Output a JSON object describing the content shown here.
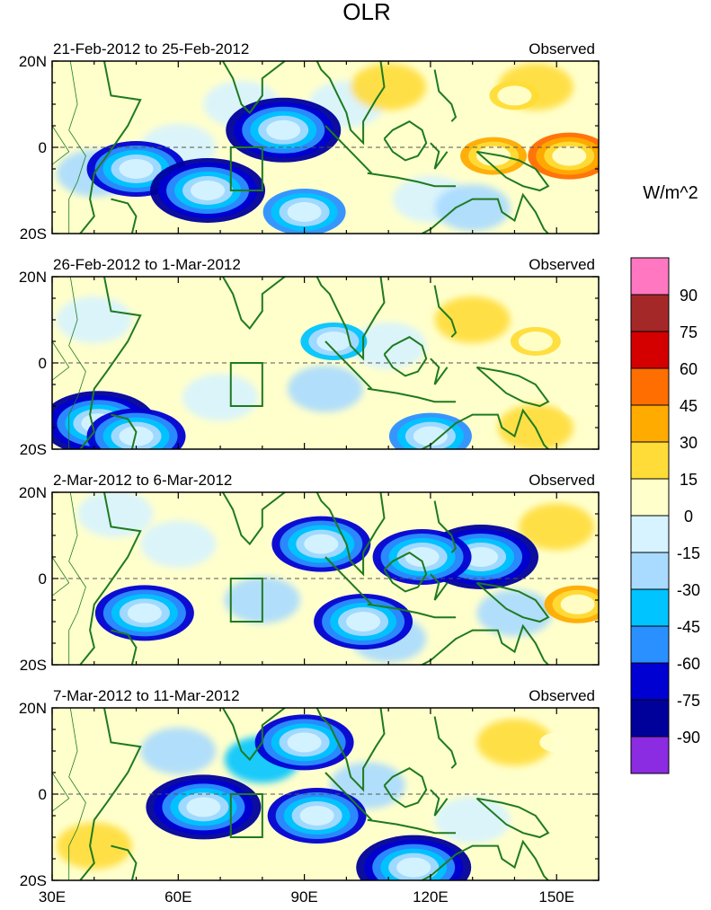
{
  "chart_data": {
    "type": "heatmap",
    "title": "OLR",
    "variable": "Outgoing Longwave Radiation anomaly",
    "colorbar": {
      "units": "W/m^2",
      "levels": [
        "90",
        "75",
        "60",
        "45",
        "30",
        "15",
        "0",
        "-15",
        "-30",
        "-45",
        "-60",
        "-75",
        "-90"
      ],
      "colors": [
        "#ff77c0",
        "#a52828",
        "#d40000",
        "#ff6e00",
        "#ffab00",
        "#ffdc37",
        "#ffffcc",
        "#d6f3ff",
        "#a9daff",
        "#00c4ff",
        "#2b90ff",
        "#0000d2",
        "#00009b",
        "#8b2be2"
      ]
    },
    "x_axis": {
      "ticks": [
        "30E",
        "60E",
        "90E",
        "120E",
        "150E"
      ],
      "tick_values": [
        30,
        60,
        90,
        120,
        150
      ],
      "range": [
        30,
        160
      ]
    },
    "y_axis": {
      "ticks": [
        "20N",
        "0",
        "20S"
      ],
      "tick_values": [
        20,
        0,
        -20
      ],
      "range": [
        -20,
        20
      ]
    },
    "land_outline_color": "#1f7a1f",
    "panels": [
      {
        "period": "21-Feb-2012 to 25-Feb-2012",
        "label": "Observed",
        "anomalies": [
          {
            "lon": 50,
            "lat": -5,
            "value": -75
          },
          {
            "lon": 67,
            "lat": -10,
            "value": -90
          },
          {
            "lon": 85,
            "lat": 4,
            "value": -90
          },
          {
            "lon": 90,
            "lat": -15,
            "value": -60
          },
          {
            "lon": 42,
            "lat": 12,
            "value": 15
          },
          {
            "lon": 135,
            "lat": -2,
            "value": 45
          },
          {
            "lon": 153,
            "lat": -2,
            "value": 60
          },
          {
            "lon": 140,
            "lat": 12,
            "value": 30
          }
        ]
      },
      {
        "period": "26-Feb-2012 to 1-Mar-2012",
        "label": "Observed",
        "anomalies": [
          {
            "lon": 41,
            "lat": -14,
            "value": -90
          },
          {
            "lon": 50,
            "lat": -17,
            "value": -75
          },
          {
            "lon": 97,
            "lat": 5,
            "value": -45
          },
          {
            "lon": 120,
            "lat": -17,
            "value": -60
          },
          {
            "lon": 145,
            "lat": 5,
            "value": 30
          },
          {
            "lon": 155,
            "lat": -10,
            "value": 15
          }
        ]
      },
      {
        "period": "2-Mar-2012 to 6-Mar-2012",
        "label": "Observed",
        "anomalies": [
          {
            "lon": 52,
            "lat": -8,
            "value": -75
          },
          {
            "lon": 94,
            "lat": 8,
            "value": -75
          },
          {
            "lon": 104,
            "lat": -10,
            "value": -75
          },
          {
            "lon": 132,
            "lat": 5,
            "value": -90
          },
          {
            "lon": 118,
            "lat": 5,
            "value": -75
          },
          {
            "lon": 155,
            "lat": -6,
            "value": 45
          }
        ]
      },
      {
        "period": "7-Mar-2012 to 11-Mar-2012",
        "label": "Observed",
        "anomalies": [
          {
            "lon": 66,
            "lat": -3,
            "value": -90
          },
          {
            "lon": 93,
            "lat": -5,
            "value": -75
          },
          {
            "lon": 116,
            "lat": -17,
            "value": -90
          },
          {
            "lon": 90,
            "lat": 12,
            "value": -75
          },
          {
            "lon": 42,
            "lat": 13,
            "value": 15
          },
          {
            "lon": 150,
            "lat": 12,
            "value": 15
          }
        ]
      }
    ]
  }
}
